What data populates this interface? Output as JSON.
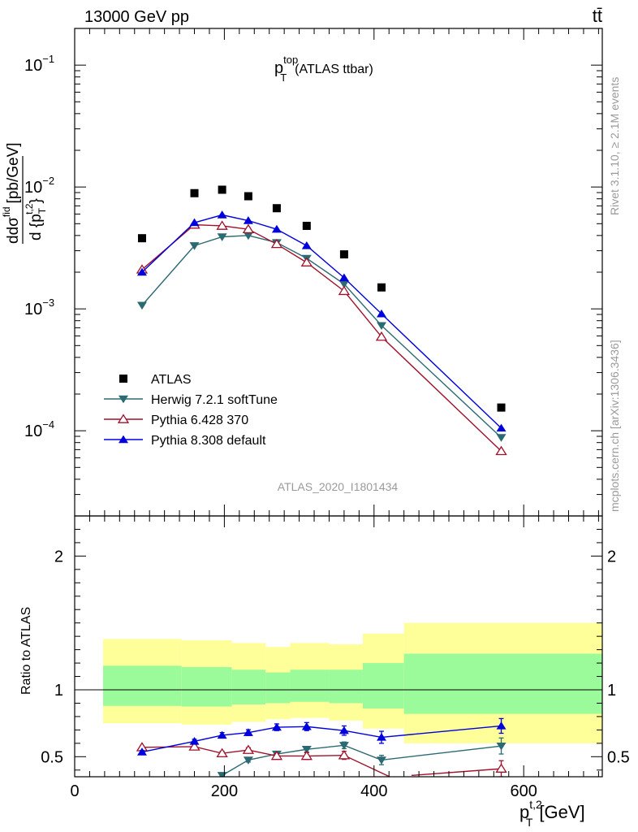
{
  "header": {
    "energy_label": "13000 GeV pp",
    "process_label": "tt̄"
  },
  "side_labels": {
    "rivet": "Rivet 3.1.10, ≥ 2.1M events",
    "source": "mcplots.cern.ch [arXiv:1306.3436]"
  },
  "analysis_label": "ATLAS_2020_I1801434",
  "colors": {
    "data": "#000000",
    "herwig": "#2b6a73",
    "pythia6": "#a0102a",
    "pythia8": "#0000dd",
    "band_inner": "#9bfb9b",
    "band_outer": "#ffff99"
  },
  "chart_data": [
    {
      "type": "scatter",
      "panel": "main",
      "title_main": "p",
      "title_sub": "T",
      "title_sup": "top",
      "title_suffix": "(ATLAS ttbar)",
      "xlabel_main": "p",
      "xlabel_sub": "T",
      "xlabel_sup": "t,2",
      "xlabel_unit": "[GeV]",
      "ylabel_line1": "dσ",
      "ylabel_line1_sup": "fid",
      "ylabel_line1_unit": "[pb/GeV]",
      "ylabel_line2": "d {p",
      "ylabel_line2_sub": "T",
      "ylabel_line2_sup": "t,2",
      "ylabel_line2_end": "}",
      "yscale": "log",
      "xlim": [
        0,
        705
      ],
      "ylim": [
        2e-05,
        0.2
      ],
      "ytick_labels": [
        {
          "mant": "10",
          "exp": "−1",
          "value": 0.1
        },
        {
          "mant": "10",
          "exp": "−2",
          "value": 0.01
        },
        {
          "mant": "10",
          "exp": "−3",
          "value": 0.001
        },
        {
          "mant": "10",
          "exp": "−4",
          "value": 0.0001
        }
      ],
      "legend_position": "lower-left",
      "series": [
        {
          "name": "ATLAS",
          "key": "data",
          "marker": "square",
          "x": [
            90,
            160,
            197,
            232,
            270,
            310,
            360,
            410,
            570
          ],
          "y": [
            0.0038,
            0.0089,
            0.0095,
            0.0084,
            0.0067,
            0.0048,
            0.0028,
            0.0015,
            0.000155
          ]
        },
        {
          "name": "Herwig 7.2.1 softTune",
          "key": "herwig",
          "marker": "triangle-down",
          "x": [
            90,
            160,
            197,
            232,
            270,
            310,
            360,
            410,
            570
          ],
          "y": [
            0.00107,
            0.0033,
            0.0039,
            0.004,
            0.0035,
            0.0026,
            0.0016,
            0.00073,
            8.8e-05
          ]
        },
        {
          "name": "Pythia 6.428 370",
          "key": "pythia6",
          "marker": "triangle-up-open",
          "x": [
            90,
            160,
            197,
            232,
            270,
            310,
            360,
            410,
            570
          ],
          "y": [
            0.0021,
            0.0049,
            0.0048,
            0.0045,
            0.0034,
            0.0024,
            0.0014,
            0.00059,
            6.8e-05
          ]
        },
        {
          "name": "Pythia 8.308 default",
          "key": "pythia8",
          "marker": "triangle-up",
          "x": [
            90,
            160,
            197,
            232,
            270,
            310,
            360,
            410,
            570
          ],
          "y": [
            0.002,
            0.0051,
            0.0059,
            0.0053,
            0.0045,
            0.0033,
            0.0018,
            0.00091,
            0.000105
          ]
        }
      ]
    },
    {
      "type": "line",
      "panel": "ratio",
      "ylabel": "Ratio to ATLAS",
      "xlim": [
        0,
        705
      ],
      "ylim": [
        0.35,
        2.3
      ],
      "xtick_labels": [
        "0",
        "200",
        "400",
        "600"
      ],
      "xtick_values": [
        0,
        200,
        400,
        600
      ],
      "ytick_labels": [
        "0.5",
        "1",
        "2"
      ],
      "ytick_values": [
        0.5,
        1,
        2
      ],
      "bands": {
        "edges": [
          38,
          143,
          210,
          255,
          288,
          340,
          385,
          440,
          705
        ],
        "inner_low": [
          0.88,
          0.875,
          0.89,
          0.9,
          0.91,
          0.9,
          0.86,
          0.82
        ],
        "inner_high": [
          1.18,
          1.17,
          1.15,
          1.13,
          1.15,
          1.15,
          1.2,
          1.27
        ],
        "outer_low": [
          0.75,
          0.74,
          0.76,
          0.78,
          0.79,
          0.77,
          0.71,
          0.6
        ],
        "outer_high": [
          1.38,
          1.37,
          1.35,
          1.32,
          1.35,
          1.34,
          1.42,
          1.5
        ]
      },
      "series": [
        {
          "name": "Herwig 7.2.1 softTune",
          "key": "herwig",
          "marker": "triangle-down",
          "x": [
            197,
            232,
            270,
            310,
            360,
            410,
            570
          ],
          "y": [
            0.36,
            0.475,
            0.52,
            0.555,
            0.585,
            0.475,
            0.58
          ],
          "err": [
            0.01,
            0.015,
            0.018,
            0.02,
            0.025,
            0.035,
            0.06
          ],
          "clipped_start_x": 180
        },
        {
          "name": "Pythia 6.428 370",
          "key": "pythia6",
          "marker": "triangle-up-open",
          "x": [
            90,
            160,
            197,
            232,
            270,
            310,
            360,
            570
          ],
          "y": [
            0.57,
            0.575,
            0.525,
            0.55,
            0.505,
            0.505,
            0.51,
            0.41
          ],
          "err": [
            0.01,
            0.012,
            0.015,
            0.017,
            0.02,
            0.025,
            0.03,
            0.06
          ],
          "clipped_end_x": 440
        },
        {
          "name": "Pythia 8.308 default",
          "key": "pythia8",
          "marker": "triangle-up",
          "x": [
            90,
            160,
            197,
            232,
            270,
            310,
            360,
            410,
            570
          ],
          "y": [
            0.535,
            0.615,
            0.66,
            0.68,
            0.72,
            0.725,
            0.695,
            0.645,
            0.73
          ],
          "err": [
            0.01,
            0.015,
            0.02,
            0.022,
            0.025,
            0.03,
            0.035,
            0.045,
            0.055
          ]
        }
      ]
    }
  ]
}
